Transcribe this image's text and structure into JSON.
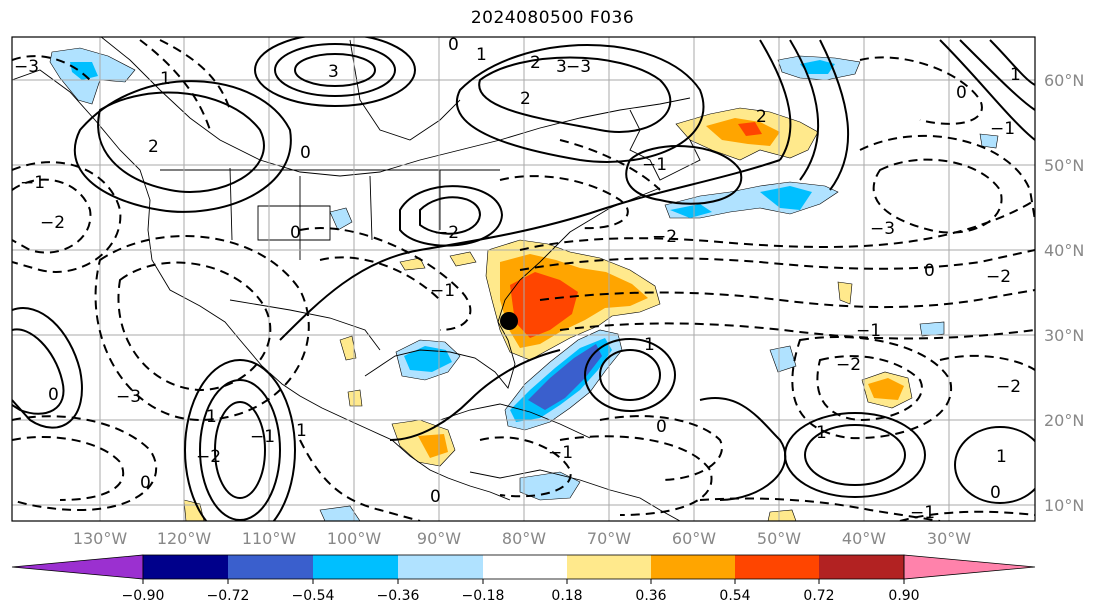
{
  "title": "2024080500 F036",
  "lat_labels": [
    "60°N",
    "50°N",
    "40°N",
    "30°N",
    "20°N",
    "10°N"
  ],
  "lon_labels": [
    "130°W",
    "120°W",
    "110°W",
    "100°W",
    "90°W",
    "80°W",
    "70°W",
    "60°W",
    "50°W",
    "40°W",
    "30°W"
  ],
  "colorbar": {
    "ticks": [
      "−0.90",
      "−0.72",
      "−0.54",
      "−0.36",
      "−0.18",
      "0.18",
      "0.36",
      "0.54",
      "0.72",
      "0.90"
    ],
    "colors": [
      "#9b30d0",
      "#00008b",
      "#3a5fcd",
      "#00bfff",
      "#b0e2ff",
      "#ffffff",
      "#ffe98c",
      "#ffa500",
      "#ff4500",
      "#b22222",
      "#ff82ab"
    ]
  },
  "contour_labels": [
    "3",
    "2",
    "1",
    "0",
    "−1",
    "−2",
    "−3",
    "3",
    "2",
    "1",
    "0",
    "−1",
    "−2",
    "−3",
    "1",
    "0",
    "−1",
    "−2",
    "1",
    "0",
    "−1",
    "2",
    "1",
    "0",
    "−1",
    "−2",
    "1",
    "0",
    "−2",
    "1",
    "−1",
    "0",
    "−2",
    "−3",
    "0",
    "−1",
    "−2",
    "1",
    "0",
    "−1",
    "−3",
    "2",
    "0"
  ],
  "marker": {
    "name": "storm-center-marker",
    "lon": -80.5,
    "lat": 31.5
  }
}
